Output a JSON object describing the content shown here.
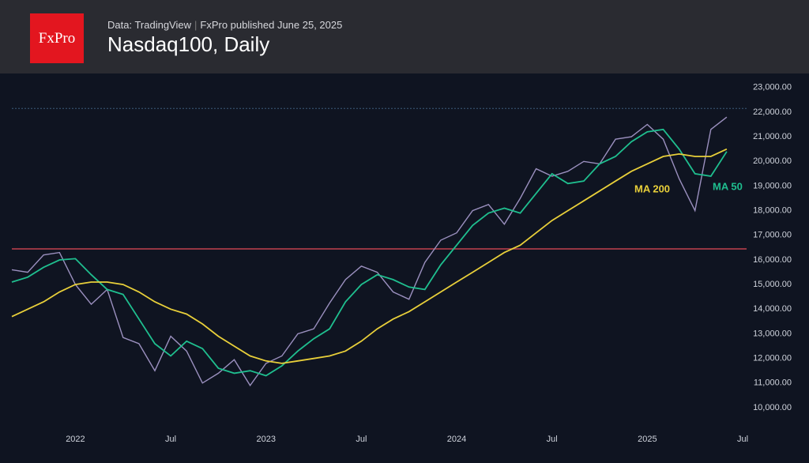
{
  "header": {
    "logo": "FxPro",
    "source": "Data: TradingView",
    "published": "FxPro published June 25, 2025",
    "title": "Nasdaq100, Daily"
  },
  "chart_data": {
    "type": "line",
    "categories": [
      null,
      null,
      null,
      null,
      "2022",
      null,
      null,
      null,
      null,
      null,
      "Jul",
      null,
      null,
      null,
      null,
      null,
      "2023",
      null,
      null,
      null,
      null,
      null,
      "Jul",
      null,
      null,
      null,
      null,
      null,
      "2024",
      null,
      null,
      null,
      null,
      null,
      "Jul",
      null,
      null,
      null,
      null,
      null,
      "2025",
      null,
      null,
      null,
      null,
      null,
      "Jul"
    ],
    "series": [
      {
        "color": "#9b90bf",
        "values": [
          15600,
          15500,
          16200,
          16300,
          15000,
          14200,
          14800,
          12850,
          12600,
          11500,
          12900,
          12300,
          11000,
          11400,
          11950,
          10900,
          11800,
          12100,
          13000,
          13200,
          14250,
          15200,
          15750,
          15500,
          14700,
          14400,
          15900,
          16800,
          17100,
          18000,
          18250,
          17450,
          18500,
          19700,
          19400,
          19600,
          20000,
          19900,
          20900,
          21000,
          21500,
          20900,
          19300,
          18000,
          21300,
          21800,
          null
        ]
      },
      {
        "name": "MA 50",
        "color": "#1fbf8f",
        "values": [
          15100,
          15300,
          15700,
          16000,
          16050,
          15400,
          14800,
          14600,
          13600,
          12600,
          12100,
          12700,
          12400,
          11600,
          11400,
          11500,
          11300,
          11700,
          12300,
          12800,
          13200,
          14300,
          15000,
          15400,
          15200,
          14900,
          14800,
          15800,
          16600,
          17400,
          17900,
          18100,
          17900,
          18700,
          19500,
          19100,
          19200,
          19900,
          20200,
          20800,
          21200,
          21300,
          20500,
          19500,
          19400,
          20400,
          null
        ]
      },
      {
        "name": "MA 200",
        "color": "#e8cf3a",
        "values": [
          13700,
          14000,
          14300,
          14700,
          15000,
          15100,
          15100,
          15000,
          14700,
          14300,
          14000,
          13800,
          13400,
          12900,
          12500,
          12100,
          11900,
          11800,
          11900,
          12000,
          12100,
          12300,
          12700,
          13200,
          13600,
          13900,
          14300,
          14700,
          15100,
          15500,
          15900,
          16300,
          16600,
          17100,
          17600,
          18000,
          18400,
          18800,
          19200,
          19600,
          19900,
          20200,
          20300,
          20200,
          20200,
          20500,
          null
        ]
      }
    ],
    "reference_lines": [
      {
        "value": 16450,
        "color": "#c2424f",
        "dashed": false
      },
      {
        "value": 22150,
        "color": "#3d5a7a",
        "dashed": true
      }
    ],
    "ylim": [
      9230,
      23570
    ],
    "yticks": [
      {
        "value": 10000,
        "label": "10,000.00"
      },
      {
        "value": 11000,
        "label": "11,000.00"
      },
      {
        "value": 12000,
        "label": "12,000.00"
      },
      {
        "value": 13000,
        "label": "13,000.00"
      },
      {
        "value": 14000,
        "label": "14,000.00"
      },
      {
        "value": 15000,
        "label": "15,000.00"
      },
      {
        "value": 16000,
        "label": "16,000.00"
      },
      {
        "value": 17000,
        "label": "17,000.00"
      },
      {
        "value": 18000,
        "label": "18,000.00"
      },
      {
        "value": 19000,
        "label": "19,000.00"
      },
      {
        "value": 20000,
        "label": "20,000.00"
      },
      {
        "value": 21000,
        "label": "21,000.00"
      },
      {
        "value": 22000,
        "label": "22,000.00"
      },
      {
        "value": 23000,
        "label": "23,000.00"
      }
    ]
  }
}
